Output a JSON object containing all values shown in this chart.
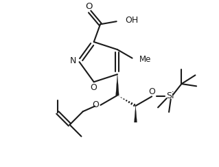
{
  "bg": "#ffffff",
  "lc": "#1a1a1a",
  "lw": 1.5,
  "fs": 8.5,
  "fig_w": 3.19,
  "fig_h": 2.43,
  "dpi": 100,
  "xlim": [
    0,
    9.5
  ],
  "ylim": [
    0,
    7.2
  ]
}
